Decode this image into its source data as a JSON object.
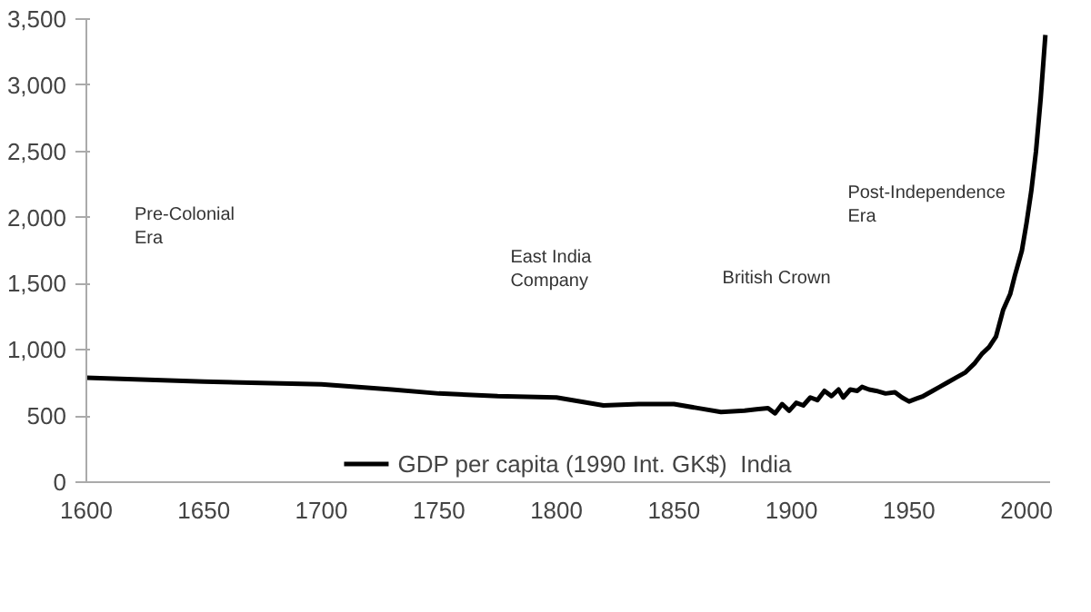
{
  "chart_data": {
    "type": "line",
    "x": [
      1600,
      1650,
      1700,
      1730,
      1750,
      1775,
      1800,
      1820,
      1835,
      1850,
      1860,
      1870,
      1880,
      1885,
      1890,
      1893,
      1896,
      1899,
      1902,
      1905,
      1908,
      1911,
      1914,
      1917,
      1920,
      1922,
      1925,
      1928,
      1930,
      1933,
      1936,
      1940,
      1944,
      1947,
      1950,
      1953,
      1956,
      1960,
      1963,
      1966,
      1970,
      1974,
      1978,
      1981,
      1984,
      1987,
      1990,
      1993,
      1995,
      1998,
      2000,
      2002,
      2004,
      2006,
      2008
    ],
    "series": [
      {
        "name": "GDP per capita (1990 Int. GK$)  India",
        "color": "#000000",
        "values": [
          790,
          760,
          740,
          700,
          670,
          650,
          640,
          580,
          590,
          590,
          560,
          530,
          540,
          550,
          560,
          520,
          590,
          540,
          600,
          580,
          640,
          620,
          690,
          650,
          700,
          640,
          700,
          690,
          720,
          700,
          690,
          670,
          680,
          640,
          610,
          630,
          650,
          690,
          720,
          750,
          790,
          830,
          900,
          970,
          1020,
          1100,
          1300,
          1420,
          1560,
          1750,
          1960,
          2200,
          2500,
          2900,
          3380
        ]
      }
    ],
    "xlim": [
      1600,
      2010
    ],
    "ylim": [
      0,
      3500
    ],
    "xticks": [
      1600,
      1650,
      1700,
      1750,
      1800,
      1850,
      1900,
      1950,
      2000
    ],
    "yticks": [
      0,
      {
        "value": 500,
        "label": "500"
      },
      {
        "value": 1000,
        "label": "1,000"
      },
      {
        "value": 1500,
        "label": "1,500"
      },
      {
        "value": 2000,
        "label": "2,000"
      },
      {
        "value": 2500,
        "label": "2,500"
      },
      {
        "value": 3000,
        "label": "3,000"
      },
      {
        "value": 3500,
        "label": "3,500"
      }
    ],
    "annotations": [
      "Pre-Colonial\nEra",
      "East India\nCompany",
      "British Crown",
      "Post-Independence\nEra"
    ],
    "grid": false,
    "legend": "bottom",
    "line_style": "solid",
    "marker": "none"
  }
}
